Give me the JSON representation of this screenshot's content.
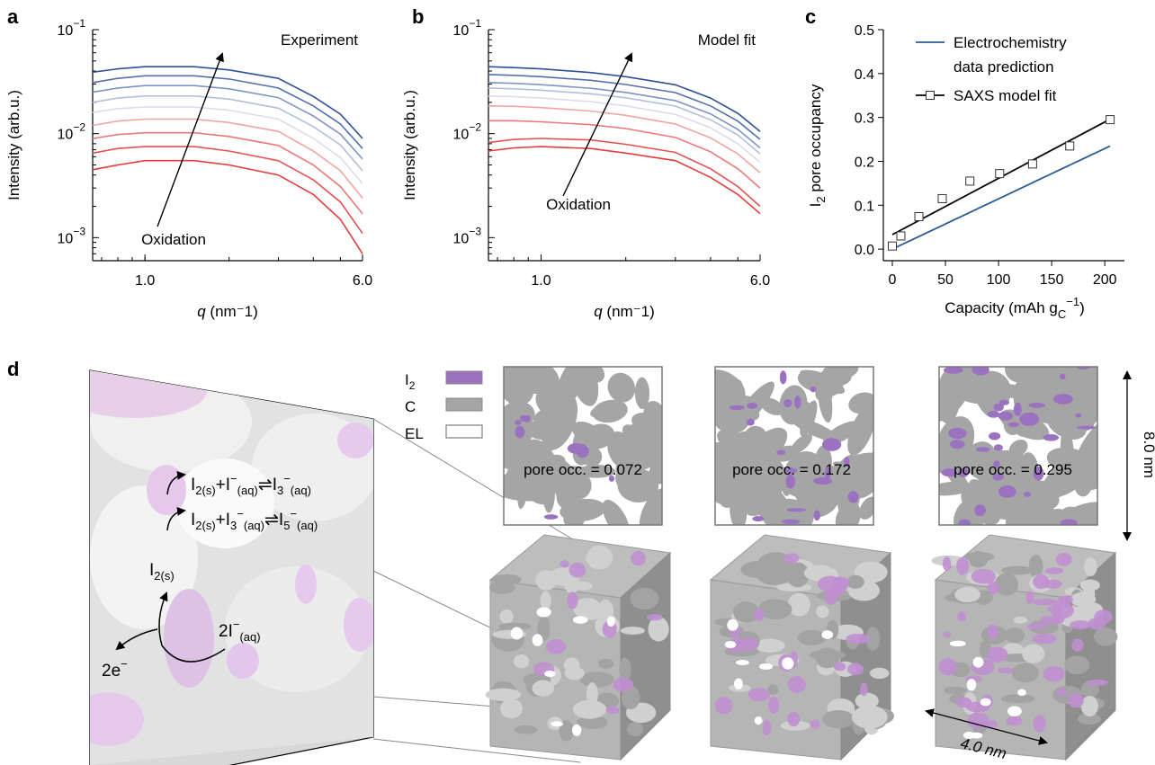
{
  "panels": {
    "a": "a",
    "b": "b",
    "c": "c",
    "d": "d"
  },
  "chart_data": [
    {
      "panel": "a",
      "type": "line",
      "title": "Experiment",
      "xlabel_var": "q",
      "xlabel_unit": " (nm⁻1)",
      "ylabel": "Intensity (arb.u.)",
      "xscale": "log",
      "yscale": "log",
      "xlim": [
        0.65,
        6.0
      ],
      "ylim": [
        0.0006,
        0.1
      ],
      "xticks": [
        {
          "value": 1.0,
          "label": "1.0"
        },
        {
          "value": 6.0,
          "label": "6.0"
        }
      ],
      "yticks": [
        {
          "value": 0.1,
          "base": "10",
          "exp": "−1"
        },
        {
          "value": 0.01,
          "base": "10",
          "exp": "−2"
        },
        {
          "value": 0.001,
          "base": "10",
          "exp": "−3"
        }
      ],
      "annotation": "Oxidation",
      "colors": [
        "#e53b3b",
        "#e65050",
        "#ee7878",
        "#f2a4a4",
        "#dcdcea",
        "#b3bedd",
        "#7f93c6",
        "#5370ae",
        "#2e4f98"
      ],
      "series": [
        {
          "x": [
            0.65,
            0.8,
            1.0,
            1.5,
            2.0,
            3.0,
            4.0,
            5.0,
            6.0
          ],
          "y": [
            0.0045,
            0.005,
            0.0055,
            0.0055,
            0.005,
            0.004,
            0.0026,
            0.0015,
            0.0007
          ]
        },
        {
          "x": [
            0.65,
            0.8,
            1.0,
            1.5,
            2.0,
            3.0,
            4.0,
            5.0,
            6.0
          ],
          "y": [
            0.0065,
            0.0072,
            0.0075,
            0.0075,
            0.0068,
            0.0055,
            0.0036,
            0.0022,
            0.0011
          ]
        },
        {
          "x": [
            0.65,
            0.8,
            1.0,
            1.5,
            2.0,
            3.0,
            4.0,
            5.0,
            6.0
          ],
          "y": [
            0.009,
            0.0098,
            0.0102,
            0.0102,
            0.0094,
            0.0077,
            0.005,
            0.0031,
            0.0017
          ]
        },
        {
          "x": [
            0.65,
            0.8,
            1.0,
            1.5,
            2.0,
            3.0,
            4.0,
            5.0,
            6.0
          ],
          "y": [
            0.012,
            0.0132,
            0.0138,
            0.0138,
            0.0128,
            0.0105,
            0.0068,
            0.0044,
            0.0024
          ]
        },
        {
          "x": [
            0.65,
            0.8,
            1.0,
            1.5,
            2.0,
            3.0,
            4.0,
            5.0,
            6.0
          ],
          "y": [
            0.016,
            0.0174,
            0.018,
            0.018,
            0.0168,
            0.0138,
            0.009,
            0.0059,
            0.0033
          ]
        },
        {
          "x": [
            0.65,
            0.8,
            1.0,
            1.5,
            2.0,
            3.0,
            4.0,
            5.0,
            6.0
          ],
          "y": [
            0.02,
            0.022,
            0.023,
            0.023,
            0.0215,
            0.0176,
            0.0117,
            0.0078,
            0.0044
          ]
        },
        {
          "x": [
            0.65,
            0.8,
            1.0,
            1.5,
            2.0,
            3.0,
            4.0,
            5.0,
            6.0
          ],
          "y": [
            0.025,
            0.0275,
            0.029,
            0.029,
            0.027,
            0.0222,
            0.0148,
            0.0099,
            0.0057
          ]
        },
        {
          "x": [
            0.65,
            0.8,
            1.0,
            1.5,
            2.0,
            3.0,
            4.0,
            5.0,
            6.0
          ],
          "y": [
            0.031,
            0.034,
            0.036,
            0.036,
            0.0335,
            0.0275,
            0.0185,
            0.0124,
            0.0072
          ]
        },
        {
          "x": [
            0.65,
            0.8,
            1.0,
            1.5,
            2.0,
            3.0,
            4.0,
            5.0,
            6.0
          ],
          "y": [
            0.039,
            0.042,
            0.044,
            0.044,
            0.041,
            0.034,
            0.0228,
            0.0154,
            0.009
          ]
        }
      ]
    },
    {
      "panel": "b",
      "type": "line",
      "title": "Model fit",
      "xlabel_var": "q",
      "xlabel_unit": " (nm⁻1)",
      "ylabel": "Intensity (arb.u.)",
      "xscale": "log",
      "yscale": "log",
      "xlim": [
        0.65,
        6.0
      ],
      "ylim": [
        0.0006,
        0.1
      ],
      "xticks": [
        {
          "value": 1.0,
          "label": "1.0"
        },
        {
          "value": 6.0,
          "label": "6.0"
        }
      ],
      "yticks": [
        {
          "value": 0.1,
          "base": "10",
          "exp": "−1"
        },
        {
          "value": 0.01,
          "base": "10",
          "exp": "−2"
        },
        {
          "value": 0.001,
          "base": "10",
          "exp": "−3"
        }
      ],
      "annotation": "Oxidation",
      "colors": [
        "#e53b3b",
        "#e65050",
        "#ee7878",
        "#f2a4a4",
        "#dcdcea",
        "#b3bedd",
        "#7f93c6",
        "#5370ae",
        "#2e4f98"
      ],
      "series": [
        {
          "x": [
            0.65,
            0.8,
            1.0,
            1.5,
            2.0,
            3.0,
            4.0,
            5.0,
            6.0
          ],
          "y": [
            0.0068,
            0.0073,
            0.0075,
            0.0072,
            0.0065,
            0.0055,
            0.0038,
            0.0026,
            0.0017
          ]
        },
        {
          "x": [
            0.65,
            0.8,
            1.0,
            1.5,
            2.0,
            3.0,
            4.0,
            5.0,
            6.0
          ],
          "y": [
            0.0082,
            0.0088,
            0.009,
            0.0087,
            0.0079,
            0.0066,
            0.0046,
            0.0031,
            0.002
          ]
        },
        {
          "x": [
            0.65,
            0.8,
            1.0,
            1.5,
            2.0,
            3.0,
            4.0,
            5.0,
            6.0
          ],
          "y": [
            0.0133,
            0.0133,
            0.013,
            0.0122,
            0.0112,
            0.0092,
            0.0067,
            0.0046,
            0.003
          ]
        },
        {
          "x": [
            0.65,
            0.8,
            1.0,
            1.5,
            2.0,
            3.0,
            4.0,
            5.0,
            6.0
          ],
          "y": [
            0.0185,
            0.0183,
            0.0178,
            0.0165,
            0.015,
            0.0124,
            0.0091,
            0.0064,
            0.0042
          ]
        },
        {
          "x": [
            0.65,
            0.8,
            1.0,
            1.5,
            2.0,
            3.0,
            4.0,
            5.0,
            6.0
          ],
          "y": [
            0.023,
            0.0227,
            0.022,
            0.0203,
            0.0185,
            0.0153,
            0.0114,
            0.008,
            0.0053
          ]
        },
        {
          "x": [
            0.65,
            0.8,
            1.0,
            1.5,
            2.0,
            3.0,
            4.0,
            5.0,
            6.0
          ],
          "y": [
            0.0275,
            0.027,
            0.0262,
            0.0242,
            0.0221,
            0.0184,
            0.0136,
            0.0097,
            0.0064
          ]
        },
        {
          "x": [
            0.65,
            0.8,
            1.0,
            1.5,
            2.0,
            3.0,
            4.0,
            5.0,
            6.0
          ],
          "y": [
            0.031,
            0.0305,
            0.0296,
            0.0273,
            0.0249,
            0.0208,
            0.0155,
            0.011,
            0.0073
          ]
        },
        {
          "x": [
            0.65,
            0.8,
            1.0,
            1.5,
            2.0,
            3.0,
            4.0,
            5.0,
            6.0
          ],
          "y": [
            0.037,
            0.0364,
            0.0353,
            0.0326,
            0.0297,
            0.0248,
            0.0185,
            0.0132,
            0.0088
          ]
        },
        {
          "x": [
            0.65,
            0.8,
            1.0,
            1.5,
            2.0,
            3.0,
            4.0,
            5.0,
            6.0
          ],
          "y": [
            0.044,
            0.0432,
            0.042,
            0.0387,
            0.0353,
            0.0295,
            0.022,
            0.0157,
            0.0105
          ]
        }
      ]
    },
    {
      "panel": "c",
      "type": "scatter",
      "xlabel": "Capacity (mAh g",
      "xlabel_sub": "C",
      "xlabel_sup": "−1",
      "xlabel_close": ")",
      "ylabel_pre": "I",
      "ylabel_sub": "2",
      "ylabel_post": " pore occupancy",
      "xlim": [
        0,
        210
      ],
      "ylim": [
        -0.01,
        0.5
      ],
      "xticks": [
        0,
        50,
        100,
        150,
        200
      ],
      "yticks": [
        {
          "value": 0.0,
          "label": "0.0"
        },
        {
          "value": 0.1,
          "label": "0.1"
        },
        {
          "value": 0.2,
          "label": "0.2"
        },
        {
          "value": 0.3,
          "label": "0.3"
        },
        {
          "value": 0.4,
          "label": "0.4"
        },
        {
          "value": 0.5,
          "label": "0.5"
        }
      ],
      "legend_placement": "top-left",
      "series": [
        {
          "name": "Electrochemistry data prediction",
          "name_line1": "Electrochemistry",
          "name_line2": "data prediction",
          "color": "#2a5d96",
          "kind": "line",
          "x": [
            0,
            205
          ],
          "y": [
            0.0,
            0.235
          ]
        },
        {
          "name": "SAXS model fit",
          "color": "#000000",
          "kind": "line+square-markers",
          "fit_x": [
            0,
            205
          ],
          "fit_y": [
            0.033,
            0.296
          ],
          "x": [
            0,
            8,
            25,
            47,
            73,
            101,
            132,
            167,
            205
          ],
          "y": [
            0.007,
            0.03,
            0.074,
            0.115,
            0.155,
            0.172,
            0.194,
            0.235,
            0.295
          ]
        }
      ]
    }
  ],
  "panel_d": {
    "legend": [
      {
        "label_main": "I",
        "label_sub": "2",
        "color": "#9b72bf"
      },
      {
        "label_main": "C",
        "label_sub": "",
        "color": "#a5a5a5"
      },
      {
        "label_main": "EL",
        "label_sub": "",
        "color": "#ffffff"
      }
    ],
    "reactions": [
      {
        "l1": "I",
        "s1": "2(s)",
        "plus": "+I",
        "sup2": "−",
        "s2": "(aq)",
        "arrow": "⇌",
        "r": "I",
        "rsub": "3",
        "rsup": "−",
        "rs2": "(aq)"
      },
      {
        "l1": "I",
        "s1": "2(s)",
        "plus": "+I",
        "s1b": "3",
        "sup2": "−",
        "s2": "(aq)",
        "arrow": "⇌",
        "r": "I",
        "rsub": "5",
        "rsup": "−",
        "rs2": "(aq)"
      }
    ],
    "species_i2": {
      "main": "I",
      "sub": "2(s)"
    },
    "species_iodide": {
      "pre": "2I",
      "sup": "−",
      "sub": "(aq)"
    },
    "electrons": {
      "main": "2e",
      "sup": "−"
    },
    "slices": [
      {
        "pore_occ_label": "pore occ. = 0.072",
        "pore_occ": 0.072
      },
      {
        "pore_occ_label": "pore occ. = 0.172",
        "pore_occ": 0.172
      },
      {
        "pore_occ_label": "pore occ. = 0.295",
        "pore_occ": 0.295
      }
    ],
    "dim_vertical": "8.0 nm",
    "dim_horizontal": "4.0 nm"
  }
}
